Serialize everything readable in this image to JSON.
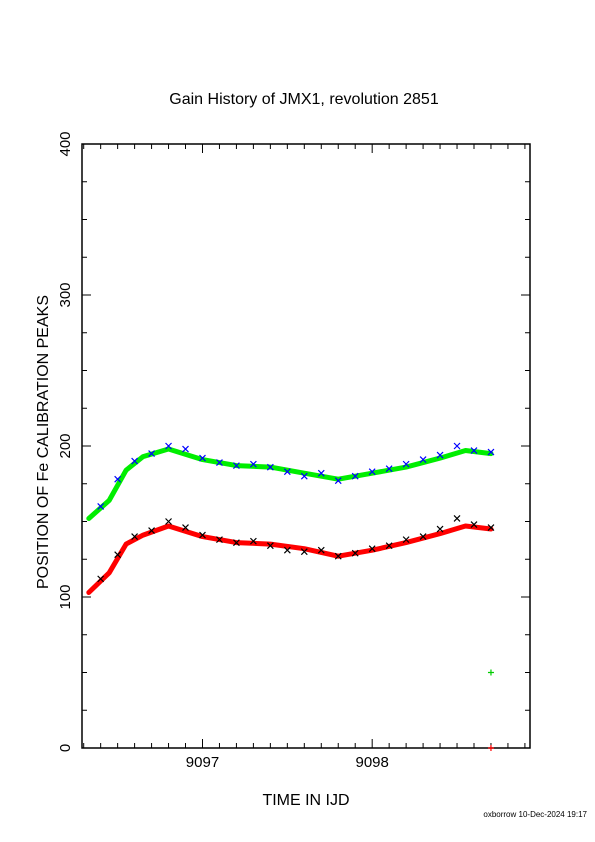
{
  "chart_data": {
    "type": "scatter",
    "title": "Gain History of JMX1, revolution 2851",
    "xlabel": "TIME IN IJD",
    "ylabel": "POSITION OF Fe CALIBRATION PEAKS",
    "xlim": [
      9096.29,
      9098.93
    ],
    "ylim": [
      0,
      400
    ],
    "x_ticks": [
      9097,
      9098
    ],
    "x_tick_labels": [
      "9097",
      "9098"
    ],
    "y_ticks": [
      0,
      100,
      200,
      300,
      400
    ],
    "y_tick_labels": [
      "0",
      "100",
      "200",
      "300",
      "400"
    ],
    "grid": false,
    "footer": "oxborrow 10-Dec-2024 19:17",
    "series": [
      {
        "marker": "x",
        "color": "#0000ff",
        "x": [
          9096.4,
          9096.5,
          9096.6,
          9096.7,
          9096.8,
          9096.9,
          9097.0,
          9097.1,
          9097.2,
          9097.3,
          9097.4,
          9097.5,
          9097.6,
          9097.7,
          9097.8,
          9097.9,
          9098.0,
          9098.1,
          9098.2,
          9098.3,
          9098.4,
          9098.5,
          9098.6,
          9098.7
        ],
        "y": [
          160,
          178,
          190,
          195,
          200,
          198,
          192,
          189,
          187,
          188,
          186,
          183,
          180,
          182,
          177,
          180,
          183,
          185,
          188,
          191,
          194,
          200,
          197,
          196
        ]
      },
      {
        "marker": "x",
        "color": "#000000",
        "x": [
          9096.4,
          9096.5,
          9096.6,
          9096.7,
          9096.8,
          9096.9,
          9097.0,
          9097.1,
          9097.2,
          9097.3,
          9097.4,
          9097.5,
          9097.6,
          9097.7,
          9097.8,
          9097.9,
          9098.0,
          9098.1,
          9098.2,
          9098.3,
          9098.4,
          9098.5,
          9098.6,
          9098.7
        ],
        "y": [
          112,
          128,
          140,
          144,
          150,
          146,
          141,
          138,
          136,
          137,
          134,
          131,
          130,
          131,
          127,
          129,
          132,
          134,
          138,
          140,
          145,
          152,
          148,
          146
        ]
      },
      {
        "marker": "line",
        "color": "#00ee00",
        "x": [
          9096.33,
          9096.45,
          9096.55,
          9096.65,
          9096.8,
          9097.0,
          9097.2,
          9097.4,
          9097.6,
          9097.8,
          9098.0,
          9098.2,
          9098.4,
          9098.55,
          9098.7
        ],
        "y": [
          152,
          164,
          184,
          193,
          198,
          191,
          187,
          186,
          182,
          178,
          182,
          186,
          192,
          197,
          195
        ]
      },
      {
        "marker": "line",
        "color": "#ff0000",
        "x": [
          9096.33,
          9096.45,
          9096.55,
          9096.65,
          9096.8,
          9097.0,
          9097.2,
          9097.4,
          9097.6,
          9097.8,
          9098.0,
          9098.2,
          9098.4,
          9098.55,
          9098.7
        ],
        "y": [
          103,
          116,
          135,
          141,
          147,
          140,
          136,
          135,
          132,
          127,
          131,
          136,
          142,
          147,
          145
        ]
      },
      {
        "marker": "+",
        "color": "#00cc00",
        "x": [
          9098.7
        ],
        "y": [
          50
        ]
      },
      {
        "marker": "+",
        "color": "#ff0000",
        "x": [
          9098.7
        ],
        "y": [
          0
        ]
      }
    ]
  }
}
